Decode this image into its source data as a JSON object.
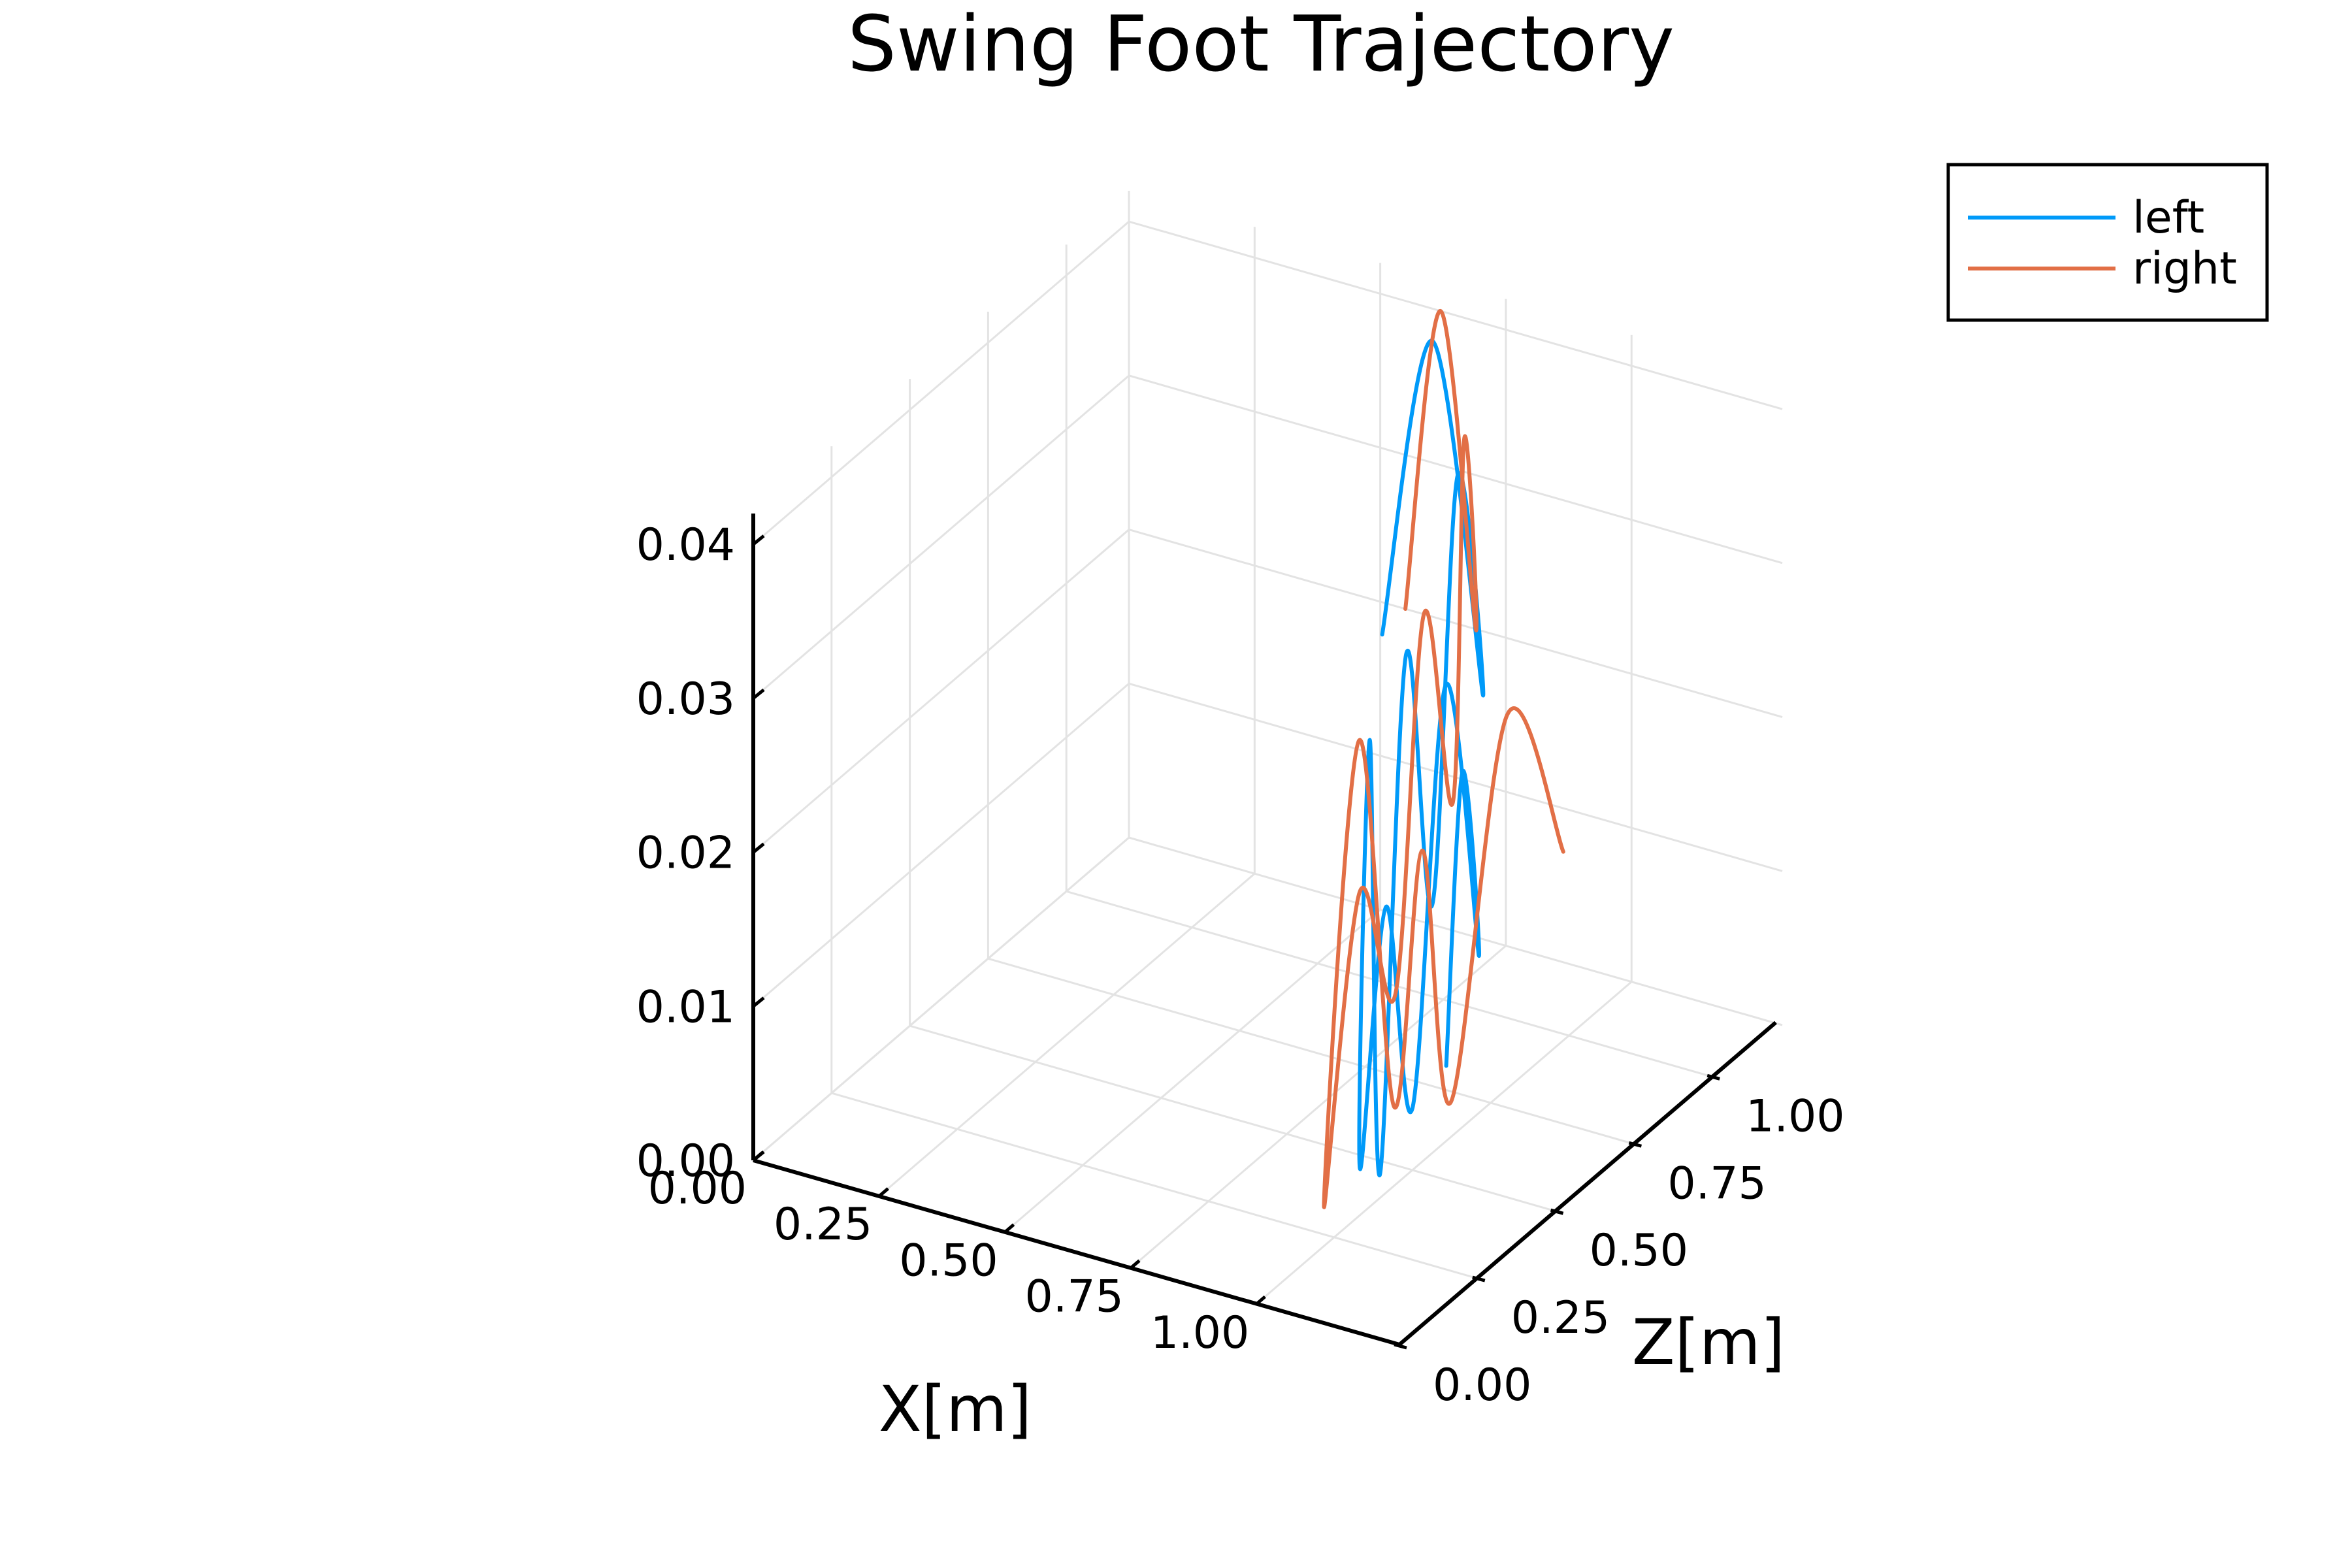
{
  "chart_data": {
    "type": "line",
    "projection": "3d",
    "title": "Swing Foot Trajectory",
    "xlabel": "X[m]",
    "ylabel": "",
    "zlabel": "Z[m]",
    "xlim": [
      0,
      1.3
    ],
    "depth_lim": [
      0,
      1.2
    ],
    "vlim": [
      0,
      0.042
    ],
    "x_ticks": [
      "0.00",
      "0.25",
      "0.50",
      "0.75",
      "1.00"
    ],
    "x_tick_values": [
      0,
      0.25,
      0.5,
      0.75,
      1.0
    ],
    "z_ticks": [
      "0.00",
      "0.25",
      "0.50",
      "0.75",
      "1.00"
    ],
    "z_tick_values": [
      0,
      0.25,
      0.5,
      0.75,
      1.0
    ],
    "v_ticks": [
      "0.00",
      "0.01",
      "0.02",
      "0.03",
      "0.04"
    ],
    "v_tick_values": [
      0,
      0.01,
      0.02,
      0.03,
      0.04
    ],
    "grid": true,
    "legend_position": "top-right",
    "series": [
      {
        "name": "left",
        "color": "#009af9",
        "points": [
          [
            0.56,
            1.11,
            0.02
          ],
          [
            0.66,
            1.11,
            0.04
          ],
          [
            0.76,
            1.11,
            0.018
          ],
          [
            0.825,
            0.925,
            0.036
          ],
          [
            0.89,
            0.74,
            0.012
          ],
          [
            0.925,
            0.6,
            0.031
          ],
          [
            0.96,
            0.46,
            0.0
          ],
          [
            0.965,
            0.42,
            0.029
          ],
          [
            0.97,
            0.38,
            0.002
          ],
          [
            0.985,
            0.44,
            0.018
          ],
          [
            1.0,
            0.5,
            0.004
          ],
          [
            1.01,
            0.59,
            0.03
          ],
          [
            1.02,
            0.68,
            0.011
          ],
          [
            1.025,
            0.62,
            0.024
          ],
          [
            1.03,
            0.56,
            0.006
          ]
        ]
      },
      {
        "name": "right",
        "color": "#e26f46",
        "points": [
          [
            0.55,
            1.2,
            0.02
          ],
          [
            0.62,
            1.2,
            0.04
          ],
          [
            0.69,
            1.2,
            0.02
          ],
          [
            0.77,
            1.035,
            0.036
          ],
          [
            0.85,
            0.87,
            0.016
          ],
          [
            0.88,
            0.73,
            0.031
          ],
          [
            0.91,
            0.59,
            0.009
          ],
          [
            0.92,
            0.46,
            0.018
          ],
          [
            0.93,
            0.33,
            0.0
          ],
          [
            0.95,
            0.41,
            0.029
          ],
          [
            0.97,
            0.49,
            0.004
          ],
          [
            0.995,
            0.54,
            0.02
          ],
          [
            1.02,
            0.59,
            0.003
          ],
          [
            1.02,
            0.77,
            0.025
          ],
          [
            1.02,
            0.95,
            0.013
          ]
        ]
      }
    ]
  }
}
